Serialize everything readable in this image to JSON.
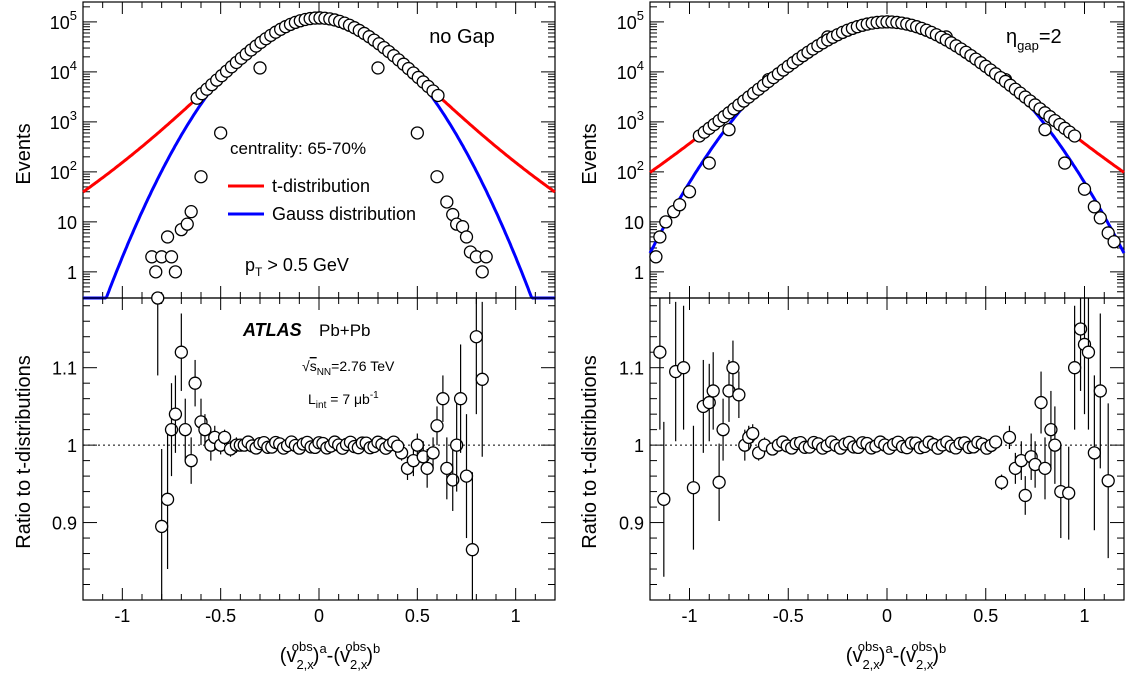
{
  "chart_data": [
    {
      "type": "scatter",
      "panel": "top-left",
      "ylabel": "Events",
      "yscale": "log",
      "xlim": [
        -1.2,
        1.2
      ],
      "ylim": [
        0.3,
        250000
      ],
      "y_ticks": [
        1,
        10,
        100,
        1000,
        10000,
        100000
      ],
      "y_tick_labels": [
        "1",
        "10",
        "10^2",
        "10^3",
        "10^4",
        "10^5"
      ],
      "annotations": {
        "gap_label": "no Gap",
        "centrality": "centrality: 65-70%",
        "pt_cut": "p_T > 0.5 GeV"
      },
      "legend": {
        "placement": "center",
        "entries": [
          {
            "label": "t-distribution",
            "color": "#ff0000"
          },
          {
            "label": "Gauss distribution",
            "color": "#0000ff"
          }
        ]
      },
      "series": [
        {
          "kind": "data",
          "note": "open circles with error bars",
          "x": [
            -0.85,
            -0.83,
            -0.8,
            -0.77,
            -0.75,
            -0.73,
            -0.7,
            -0.67,
            -0.65,
            -0.6,
            -0.5,
            -0.3,
            0,
            0.3,
            0.5,
            0.6,
            0.65,
            0.68,
            0.7,
            0.73,
            0.75,
            0.77,
            0.8,
            0.83,
            0.85
          ],
          "y": [
            2,
            1,
            2,
            5,
            2,
            1,
            7,
            9,
            16,
            80,
            600,
            12000,
            120000,
            12000,
            600,
            80,
            25,
            14,
            9,
            8,
            5,
            2.5,
            2,
            1,
            2
          ]
        },
        {
          "kind": "fit",
          "name": "t-distribution",
          "color": "#ff0000",
          "sigma": 0.196,
          "nu": 8.5,
          "peak": 120000
        },
        {
          "kind": "fit",
          "name": "Gauss distribution",
          "color": "#0000ff",
          "sigma": 0.213,
          "peak": 120000
        }
      ]
    },
    {
      "type": "scatter",
      "panel": "top-right",
      "ylabel": "Events",
      "yscale": "log",
      "xlim": [
        -1.2,
        1.2
      ],
      "ylim": [
        0.3,
        250000
      ],
      "y_ticks": [
        1,
        10,
        100,
        1000,
        10000,
        100000
      ],
      "y_tick_labels": [
        "1",
        "10",
        "10^2",
        "10^3",
        "10^4",
        "10^5"
      ],
      "annotations": {
        "gap_label": "η_gap=2"
      },
      "series": [
        {
          "kind": "data",
          "note": "open circles with error bars",
          "x": [
            -1.17,
            -1.15,
            -1.12,
            -1.08,
            -1.05,
            -1.0,
            -0.9,
            -0.8,
            -0.6,
            -0.3,
            0,
            0.3,
            0.6,
            0.8,
            0.9,
            1.0,
            1.05,
            1.08,
            1.12,
            1.15
          ],
          "y": [
            2,
            5,
            10,
            16,
            22,
            40,
            150,
            700,
            7000,
            50000,
            100000,
            50000,
            7000,
            700,
            150,
            45,
            20,
            12,
            6,
            4
          ]
        },
        {
          "kind": "fit",
          "name": "t-distribution",
          "color": "#ff0000",
          "sigma": 0.235,
          "nu": 9.5,
          "peak": 100000
        },
        {
          "kind": "fit",
          "name": "Gauss distribution",
          "color": "#0000ff",
          "sigma": 0.26,
          "peak": 100000
        }
      ]
    },
    {
      "type": "scatter",
      "panel": "bottom-left",
      "ylabel": "Ratio to t-distributions",
      "xlabel": "(v_{2,x}^{obs})^a-(v_{2,x}^{obs})^b",
      "xlim": [
        -1.2,
        1.2
      ],
      "ylim": [
        0.8,
        1.19
      ],
      "x_ticks": [
        -1,
        -0.5,
        0,
        0.5,
        1
      ],
      "x_tick_labels": [
        "-1",
        "-0.5",
        "0",
        "0.5",
        "1"
      ],
      "y_ticks": [
        0.9,
        1,
        1.1
      ],
      "y_tick_labels": [
        "0.9",
        "1",
        "1.1"
      ],
      "reference_line": 1,
      "annotations": {
        "atlas": "ATLAS",
        "system": "Pb+Pb",
        "energy": "√s_NN=2.76 TeV",
        "lumi": "L_int = 7 μb^-1"
      },
      "series": [
        {
          "kind": "data",
          "note": "open circles with error bars",
          "x": [
            -0.82,
            -0.8,
            -0.77,
            -0.75,
            -0.73,
            -0.7,
            -0.68,
            -0.65,
            -0.63,
            -0.6,
            -0.58,
            -0.55,
            -0.53,
            -0.5,
            -0.48,
            -0.45,
            -0.42,
            -0.4,
            0.42,
            0.45,
            0.48,
            0.5,
            0.53,
            0.55,
            0.58,
            0.6,
            0.63,
            0.65,
            0.68,
            0.7,
            0.72,
            0.75,
            0.78,
            0.8,
            0.83
          ],
          "y": [
            1.19,
            0.895,
            0.93,
            1.02,
            1.04,
            1.12,
            1.02,
            0.98,
            1.08,
            1.03,
            1.02,
            1.0,
            1.01,
            1.0,
            1.01,
            0.995,
            1.0,
            1.0,
            0.99,
            0.97,
            0.98,
            1.0,
            0.985,
            0.97,
            0.99,
            1.025,
            1.06,
            0.97,
            0.955,
            1.0,
            1.06,
            0.96,
            0.865,
            1.14,
            1.085
          ],
          "yerr": [
            0.1,
            0.1,
            0.09,
            0.06,
            0.05,
            0.05,
            0.04,
            0.03,
            0.03,
            0.03,
            0.02,
            0.02,
            0.015,
            0.012,
            0.01,
            0.01,
            0.01,
            0.008,
            0.01,
            0.015,
            0.02,
            0.015,
            0.02,
            0.025,
            0.02,
            0.025,
            0.03,
            0.04,
            0.04,
            0.06,
            0.07,
            0.08,
            0.1,
            0.1,
            0.1
          ]
        },
        {
          "kind": "data-core",
          "note": "dense points near 1",
          "x_from": -0.38,
          "x_to": 0.4,
          "n": 40,
          "y": 1.0
        }
      ]
    },
    {
      "type": "scatter",
      "panel": "bottom-right",
      "ylabel": "Ratio to t-distributions",
      "xlabel": "(v_{2,x}^{obs})^a-(v_{2,x}^{obs})^b",
      "xlim": [
        -1.2,
        1.2
      ],
      "ylim": [
        0.8,
        1.19
      ],
      "x_ticks": [
        -1,
        -0.5,
        0,
        0.5,
        1
      ],
      "x_tick_labels": [
        "-1",
        "-0.5",
        "0",
        "0.5",
        "1"
      ],
      "y_ticks": [
        0.9,
        1,
        1.1
      ],
      "y_tick_labels": [
        "0.9",
        "1",
        "1.1"
      ],
      "reference_line": 1,
      "series": [
        {
          "kind": "data",
          "note": "open circles with error bars",
          "x": [
            -1.15,
            -1.13,
            -1.07,
            -1.03,
            -0.98,
            -0.93,
            -0.9,
            -0.88,
            -0.85,
            -0.83,
            -0.8,
            -0.78,
            -0.75,
            -0.72,
            -0.7,
            -0.68,
            -0.65,
            -0.62,
            -0.58,
            0.58,
            0.62,
            0.65,
            0.68,
            0.7,
            0.73,
            0.75,
            0.78,
            0.8,
            0.83,
            0.85,
            0.88,
            0.92,
            0.95,
            0.98,
            1.0,
            1.02,
            1.05,
            1.08,
            1.12
          ],
          "y": [
            1.12,
            0.93,
            1.095,
            1.1,
            0.945,
            1.05,
            1.055,
            1.07,
            0.952,
            1.02,
            1.07,
            1.1,
            1.065,
            1.0,
            1.01,
            1.015,
            0.99,
            1.0,
            0.995,
            0.952,
            1.01,
            0.97,
            0.98,
            0.935,
            0.985,
            0.975,
            1.055,
            0.97,
            1.02,
            1.0,
            0.94,
            0.938,
            1.1,
            1.15,
            1.13,
            1.12,
            0.99,
            1.07,
            0.954
          ],
          "yerr": [
            0.1,
            0.1,
            0.09,
            0.08,
            0.08,
            0.06,
            0.05,
            0.05,
            0.05,
            0.04,
            0.04,
            0.035,
            0.03,
            0.02,
            0.015,
            0.012,
            0.01,
            0.01,
            0.008,
            0.01,
            0.015,
            0.02,
            0.025,
            0.025,
            0.03,
            0.03,
            0.04,
            0.04,
            0.05,
            0.05,
            0.06,
            0.06,
            0.08,
            0.08,
            0.09,
            0.1,
            0.1,
            0.1,
            0.1
          ]
        },
        {
          "kind": "data-core",
          "note": "dense points near 1",
          "x_from": -0.55,
          "x_to": 0.55,
          "n": 50,
          "y": 1.0
        }
      ]
    }
  ]
}
